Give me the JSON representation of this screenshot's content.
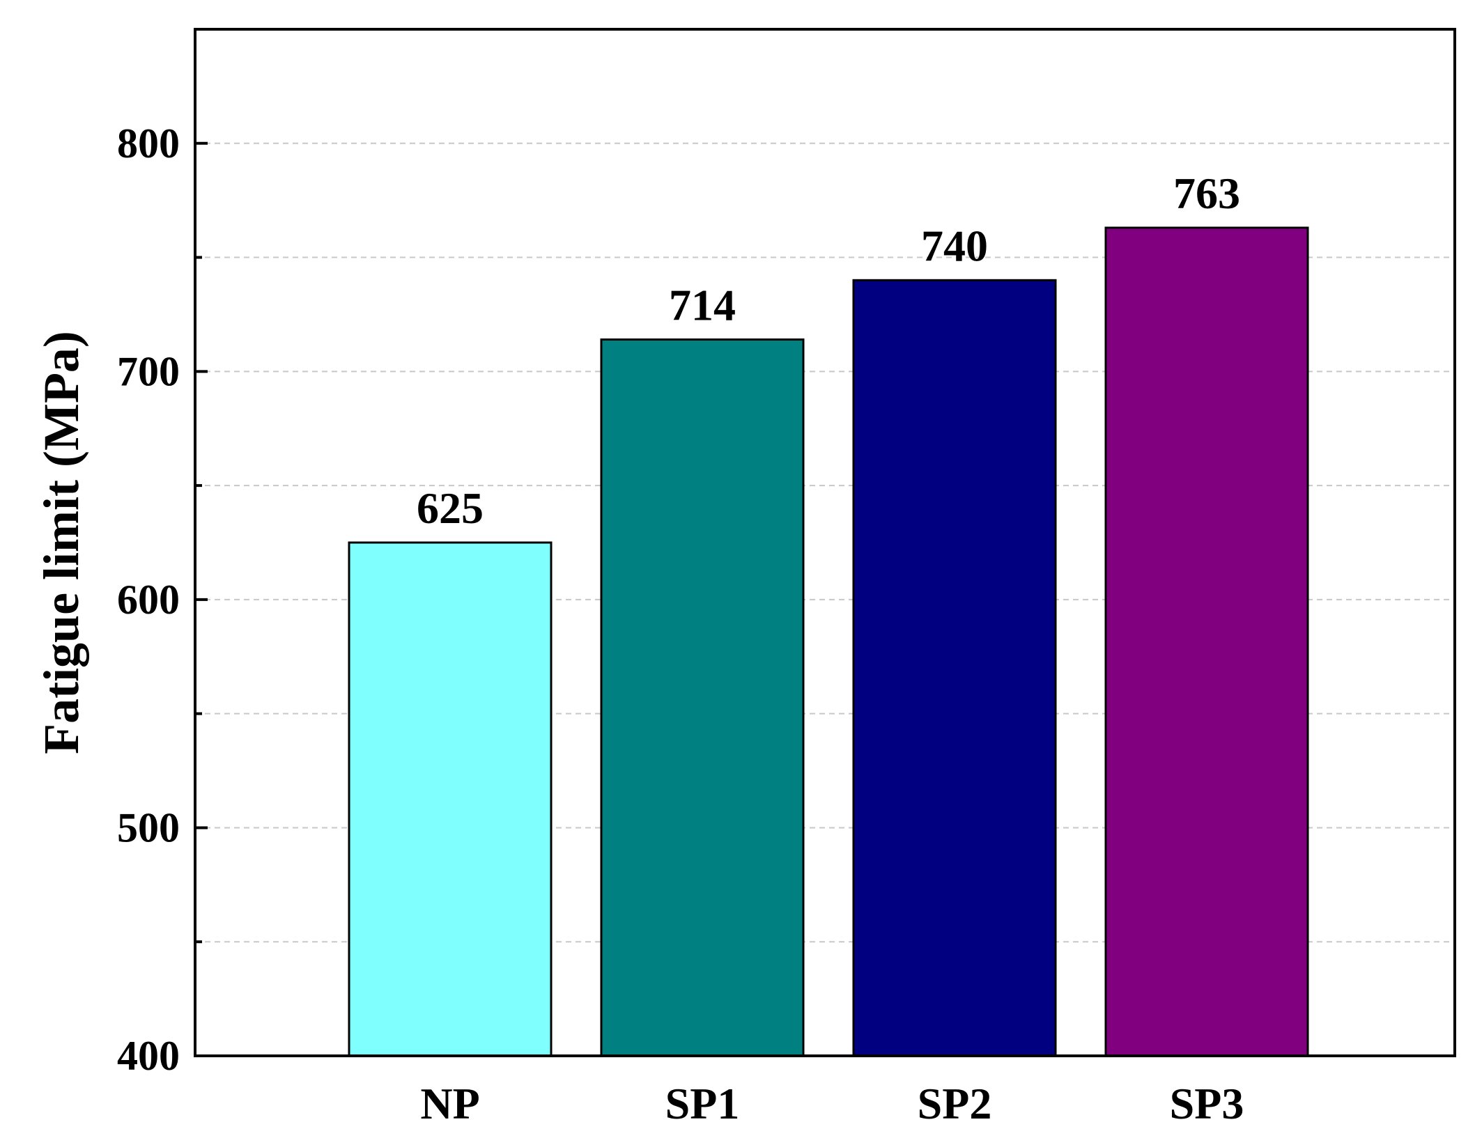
{
  "chart_data": {
    "type": "bar",
    "title": "",
    "xlabel": "",
    "ylabel": "Fatigue limit (MPa)",
    "categories": [
      "NP",
      "SP1",
      "SP2",
      "SP3"
    ],
    "values": [
      625,
      714,
      740,
      763
    ],
    "value_labels": [
      "625",
      "714",
      "740",
      "763"
    ],
    "colors": [
      "#80ffff",
      "#008080",
      "#000080",
      "#800080"
    ],
    "ylim": [
      400,
      850
    ],
    "yticks": [
      400,
      500,
      600,
      700,
      800
    ],
    "ytick_labels": [
      "400",
      "500",
      "600",
      "700",
      "800"
    ],
    "minor_yticks": [
      450,
      550,
      650,
      750
    ],
    "grid": true,
    "legend": "none"
  }
}
